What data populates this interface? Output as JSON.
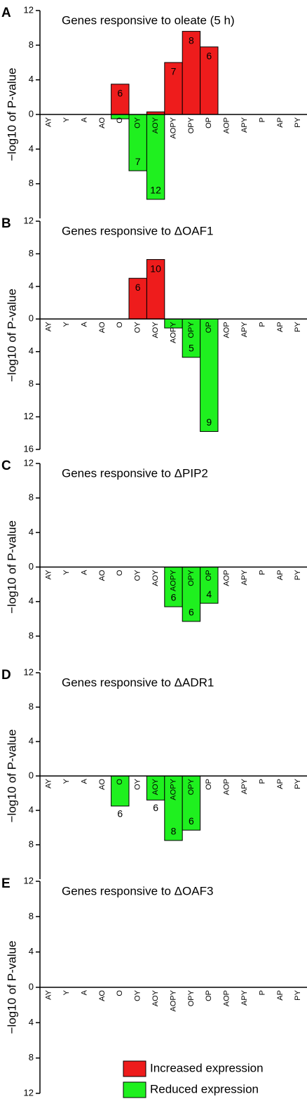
{
  "chart_data": [
    {
      "type": "bar",
      "panel": "A",
      "title": "Genes responsive to oleate (5 h)",
      "ylabel": "−log10 of P-value",
      "categories": [
        "AY",
        "Y",
        "A",
        "AO",
        "O",
        "OY",
        "AOY",
        "AOPY",
        "OPY",
        "OP",
        "AOP",
        "APY",
        "P",
        "AP",
        "PY"
      ],
      "ylim": [
        -12,
        12
      ],
      "yticks": [
        12,
        8,
        4,
        0,
        {
          "value": -4,
          "label": "4"
        },
        {
          "value": -8,
          "label": "8"
        }
      ],
      "series": [
        {
          "color": "#ee1c1c",
          "values": [
            null,
            null,
            null,
            null,
            3.5,
            null,
            0.3,
            6,
            9.6,
            7.8,
            null,
            null,
            null,
            null,
            null
          ],
          "counts": [
            null,
            null,
            null,
            null,
            6,
            null,
            null,
            7,
            8,
            6,
            null,
            null,
            null,
            null,
            null
          ]
        },
        {
          "color": "#1ff01f",
          "values": [
            null,
            null,
            null,
            null,
            -0.5,
            -6.5,
            -9.8,
            null,
            null,
            null,
            null,
            null,
            null,
            null,
            null
          ],
          "counts": [
            null,
            null,
            null,
            null,
            null,
            7,
            12,
            null,
            null,
            null,
            null,
            null,
            null,
            null,
            null
          ]
        }
      ]
    },
    {
      "type": "bar",
      "panel": "B",
      "title": "Genes responsive to ΔOAF1",
      "ylabel": "−log10 of P-value",
      "categories": [
        "AY",
        "Y",
        "A",
        "AO",
        "O",
        "OY",
        "AOY",
        "AOPY",
        "OPY",
        "OP",
        "AOP",
        "APY",
        "P",
        "AP",
        "PY"
      ],
      "ylim": [
        -16,
        12
      ],
      "yticks": [
        12,
        8,
        4,
        0,
        {
          "value": -4,
          "label": "4"
        },
        {
          "value": -8,
          "label": "8"
        },
        {
          "value": -12,
          "label": "12"
        },
        {
          "value": -16,
          "label": "16"
        }
      ],
      "series": [
        {
          "color": "#ee1c1c",
          "values": [
            null,
            null,
            null,
            null,
            null,
            5,
            7.3,
            null,
            null,
            null,
            null,
            null,
            null,
            null,
            null
          ],
          "counts": [
            null,
            null,
            null,
            null,
            null,
            6,
            10,
            null,
            null,
            null,
            null,
            null,
            null,
            null,
            null
          ]
        },
        {
          "color": "#1ff01f",
          "values": [
            null,
            null,
            null,
            null,
            null,
            null,
            null,
            -1.1,
            -4.7,
            -13.8,
            null,
            null,
            null,
            null,
            null
          ],
          "counts": [
            null,
            null,
            null,
            null,
            null,
            null,
            null,
            null,
            5,
            9,
            null,
            null,
            null,
            null,
            null
          ]
        }
      ]
    },
    {
      "type": "bar",
      "panel": "C",
      "title": "Genes responsive to ΔPIP2",
      "ylabel": "−log10 of P-value",
      "categories": [
        "AY",
        "Y",
        "A",
        "AO",
        "O",
        "OY",
        "AOY",
        "AOPY",
        "OPY",
        "OP",
        "AOP",
        "APY",
        "P",
        "AP",
        "PY"
      ],
      "ylim": [
        -12,
        12
      ],
      "yticks": [
        12,
        8,
        4,
        0,
        {
          "value": -4,
          "label": "4"
        },
        {
          "value": -8,
          "label": "8"
        }
      ],
      "series": [
        {
          "color": "#ee1c1c",
          "values": [
            null,
            null,
            null,
            null,
            null,
            null,
            null,
            null,
            null,
            null,
            null,
            null,
            null,
            null,
            null
          ],
          "counts": [
            null,
            null,
            null,
            null,
            null,
            null,
            null,
            null,
            null,
            null,
            null,
            null,
            null,
            null,
            null
          ]
        },
        {
          "color": "#1ff01f",
          "values": [
            null,
            null,
            null,
            null,
            null,
            null,
            null,
            -4.6,
            -6.3,
            -4.2,
            null,
            null,
            null,
            null,
            null
          ],
          "counts": [
            null,
            null,
            null,
            null,
            null,
            null,
            null,
            6,
            6,
            4,
            null,
            null,
            null,
            null,
            null
          ]
        }
      ]
    },
    {
      "type": "bar",
      "panel": "D",
      "title": "Genes responsive to ΔADR1",
      "ylabel": "−log10 of P-value",
      "categories": [
        "AY",
        "Y",
        "A",
        "AO",
        "O",
        "OY",
        "AOY",
        "AOPY",
        "OPY",
        "OP",
        "AOP",
        "APY",
        "P",
        "AP",
        "PY"
      ],
      "ylim": [
        -12,
        12
      ],
      "yticks": [
        12,
        8,
        4,
        0,
        {
          "value": -4,
          "label": "4"
        },
        {
          "value": -8,
          "label": "8"
        }
      ],
      "series": [
        {
          "color": "#ee1c1c",
          "values": [
            null,
            null,
            null,
            null,
            null,
            null,
            null,
            null,
            null,
            null,
            null,
            null,
            null,
            null,
            null
          ],
          "counts": [
            null,
            null,
            null,
            null,
            null,
            null,
            null,
            null,
            null,
            null,
            null,
            null,
            null,
            null,
            null
          ]
        },
        {
          "color": "#1ff01f",
          "values": [
            null,
            null,
            null,
            null,
            -3.5,
            null,
            -2.8,
            -7.5,
            -6.3,
            null,
            null,
            null,
            null,
            null,
            null
          ],
          "counts": [
            null,
            null,
            null,
            null,
            6,
            null,
            6,
            8,
            6,
            null,
            null,
            null,
            null,
            null,
            null
          ]
        }
      ]
    },
    {
      "type": "bar",
      "panel": "E",
      "title": "Genes responsive to ΔOAF3",
      "ylabel": "−log10 of P-value",
      "categories": [
        "AY",
        "Y",
        "A",
        "AO",
        "O",
        "OY",
        "AOY",
        "AOPY",
        "OPY",
        "OP",
        "AOP",
        "APY",
        "P",
        "AP",
        "PY"
      ],
      "ylim": [
        -12,
        12
      ],
      "yticks": [
        12,
        8,
        4,
        0,
        {
          "value": -4,
          "label": "4"
        },
        {
          "value": -8,
          "label": "8"
        },
        {
          "value": -12,
          "label": "12"
        }
      ],
      "series": [
        {
          "name": "Increased expression",
          "color": "#ee1c1c",
          "values": [
            null,
            null,
            null,
            null,
            null,
            null,
            null,
            null,
            null,
            null,
            null,
            null,
            null,
            null,
            null
          ],
          "counts": [
            null,
            null,
            null,
            null,
            null,
            null,
            null,
            null,
            null,
            null,
            null,
            null,
            null,
            null,
            null
          ]
        },
        {
          "name": "Reduced expression",
          "color": "#1ff01f",
          "values": [
            null,
            null,
            null,
            null,
            null,
            null,
            null,
            null,
            null,
            null,
            null,
            null,
            null,
            null,
            null
          ],
          "counts": [
            null,
            null,
            null,
            null,
            null,
            null,
            null,
            null,
            null,
            null,
            null,
            null,
            null,
            null,
            null
          ]
        }
      ]
    }
  ]
}
